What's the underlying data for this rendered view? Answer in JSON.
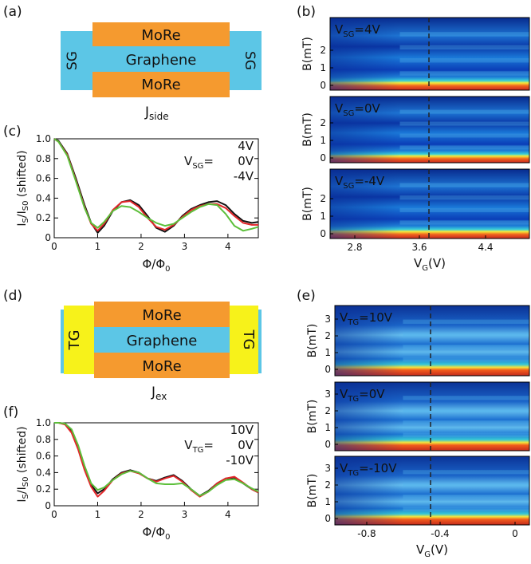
{
  "panels": {
    "a": "(a)",
    "b": "(b)",
    "c": "(c)",
    "d": "(d)",
    "e": "(e)",
    "f": "(f)"
  },
  "colors": {
    "molre": "#f59a2f",
    "graphene": "#5cc6e6",
    "side_gate": "#5cc6e6",
    "top_gate": "#f7f21a",
    "black_series": "#111111",
    "red_series": "#e3262a",
    "green_series": "#5cbf3a"
  },
  "device_a": {
    "top": "MoRe",
    "middle": "Graphene",
    "bottom": "MoRe",
    "left_gate": "SG",
    "right_gate": "SG",
    "label_main": "J",
    "label_sub": "side"
  },
  "device_d": {
    "top": "MoRe",
    "middle": "Graphene",
    "bottom": "MoRe",
    "left_gate": "TG",
    "right_gate": "TG",
    "label_main": "J",
    "label_sub": "ex"
  },
  "maps_b": {
    "ylabel": "B(mT)",
    "xlabel_main": "V",
    "xlabel_sub": "G",
    "xlabel_unit": "(V)",
    "yticks": [
      "0",
      "1",
      "2"
    ],
    "xticks": [
      "2.8",
      "3.6",
      "4.4"
    ],
    "dashed_line_x": "3.7",
    "rows": [
      {
        "prefix": "V",
        "sub": "SG",
        "value": "=4V"
      },
      {
        "prefix": "V",
        "sub": "SG",
        "value": "=0V"
      },
      {
        "prefix": "V",
        "sub": "SG",
        "value": "=-4V"
      }
    ]
  },
  "maps_e": {
    "ylabel": "B(mT)",
    "xlabel_main": "V",
    "xlabel_sub": "G",
    "xlabel_unit": "(V)",
    "yticks": [
      "0",
      "1",
      "2",
      "3"
    ],
    "xticks": [
      "-0.8",
      "-0.4",
      "0"
    ],
    "dashed_line_x": "-0.45",
    "rows": [
      {
        "prefix": "V",
        "sub": "TG",
        "value": "=10V"
      },
      {
        "prefix": "V",
        "sub": "TG",
        "value": "=0V"
      },
      {
        "prefix": "V",
        "sub": "TG",
        "value": "=-10V"
      }
    ]
  },
  "chart_data": [
    {
      "type": "line",
      "panel": "c",
      "ylabel": "I_S/I_S0 (shifted)",
      "xlabel": "Φ/Φ_0",
      "xlim": [
        0,
        4.7
      ],
      "ylim": [
        0,
        1.0
      ],
      "xticks": [
        "0",
        "1",
        "2",
        "3",
        "4"
      ],
      "yticks": [
        "0",
        "0.2",
        "0.4",
        "0.6",
        "0.8",
        "1.0"
      ],
      "legend_prefix": "V",
      "legend_sub": "SG",
      "legend_eq": "=",
      "series": [
        {
          "name": "4V",
          "color": "#111111",
          "x": [
            0,
            0.1,
            0.3,
            0.5,
            0.7,
            0.85,
            1.0,
            1.15,
            1.35,
            1.55,
            1.75,
            1.95,
            2.15,
            2.35,
            2.55,
            2.75,
            2.95,
            3.15,
            3.35,
            3.55,
            3.75,
            3.95,
            4.15,
            4.35,
            4.55,
            4.7
          ],
          "y": [
            1.0,
            0.98,
            0.85,
            0.6,
            0.33,
            0.15,
            0.05,
            0.12,
            0.27,
            0.36,
            0.38,
            0.33,
            0.22,
            0.1,
            0.06,
            0.12,
            0.22,
            0.29,
            0.33,
            0.36,
            0.37,
            0.33,
            0.24,
            0.17,
            0.15,
            0.16
          ]
        },
        {
          "name": "0V",
          "color": "#e3262a",
          "x": [
            0,
            0.1,
            0.3,
            0.5,
            0.7,
            0.85,
            1.0,
            1.15,
            1.35,
            1.55,
            1.75,
            1.95,
            2.15,
            2.35,
            2.55,
            2.75,
            2.95,
            3.15,
            3.35,
            3.55,
            3.75,
            3.95,
            4.15,
            4.35,
            4.55,
            4.7
          ],
          "y": [
            1.0,
            0.97,
            0.84,
            0.58,
            0.31,
            0.14,
            0.07,
            0.14,
            0.28,
            0.36,
            0.37,
            0.31,
            0.2,
            0.11,
            0.08,
            0.13,
            0.21,
            0.28,
            0.32,
            0.34,
            0.34,
            0.3,
            0.22,
            0.15,
            0.13,
            0.13
          ]
        },
        {
          "name": "-4V",
          "color": "#5cbf3a",
          "x": [
            0,
            0.1,
            0.3,
            0.5,
            0.7,
            0.85,
            1.0,
            1.15,
            1.35,
            1.55,
            1.75,
            1.95,
            2.15,
            2.35,
            2.55,
            2.75,
            2.95,
            3.15,
            3.35,
            3.55,
            3.75,
            3.95,
            4.15,
            4.35,
            4.55,
            4.7
          ],
          "y": [
            1.0,
            0.97,
            0.83,
            0.57,
            0.3,
            0.15,
            0.1,
            0.16,
            0.27,
            0.32,
            0.31,
            0.26,
            0.2,
            0.15,
            0.12,
            0.14,
            0.2,
            0.26,
            0.31,
            0.34,
            0.33,
            0.24,
            0.12,
            0.07,
            0.09,
            0.11
          ]
        }
      ]
    },
    {
      "type": "line",
      "panel": "f",
      "ylabel": "I_S/I_S0 (shifted)",
      "xlabel": "Φ/Φ_0",
      "xlim": [
        0,
        4.7
      ],
      "ylim": [
        0,
        1.0
      ],
      "xticks": [
        "0",
        "1",
        "2",
        "3",
        "4"
      ],
      "yticks": [
        "0",
        "0.2",
        "0.4",
        "0.6",
        "0.8",
        "1.0"
      ],
      "legend_prefix": "V",
      "legend_sub": "TG",
      "legend_eq": "=",
      "series": [
        {
          "name": "10V",
          "color": "#111111",
          "x": [
            0,
            0.1,
            0.25,
            0.4,
            0.55,
            0.7,
            0.85,
            1.0,
            1.15,
            1.35,
            1.55,
            1.75,
            1.95,
            2.15,
            2.35,
            2.55,
            2.75,
            2.95,
            3.15,
            3.35,
            3.55,
            3.75,
            3.95,
            4.15,
            4.35,
            4.55,
            4.7
          ],
          "y": [
            1.0,
            1.0,
            0.99,
            0.9,
            0.7,
            0.45,
            0.25,
            0.15,
            0.2,
            0.32,
            0.4,
            0.43,
            0.4,
            0.33,
            0.3,
            0.34,
            0.37,
            0.3,
            0.2,
            0.12,
            0.18,
            0.27,
            0.33,
            0.34,
            0.27,
            0.2,
            0.16
          ]
        },
        {
          "name": "0V",
          "color": "#e3262a",
          "x": [
            0,
            0.1,
            0.25,
            0.4,
            0.55,
            0.7,
            0.85,
            1.0,
            1.15,
            1.35,
            1.55,
            1.75,
            1.95,
            2.15,
            2.35,
            2.55,
            2.75,
            2.95,
            3.15,
            3.35,
            3.55,
            3.75,
            3.95,
            4.15,
            4.35,
            4.55,
            4.7
          ],
          "y": [
            1.0,
            1.0,
            0.98,
            0.88,
            0.68,
            0.43,
            0.23,
            0.11,
            0.18,
            0.31,
            0.39,
            0.42,
            0.39,
            0.33,
            0.29,
            0.33,
            0.36,
            0.29,
            0.19,
            0.11,
            0.17,
            0.27,
            0.33,
            0.35,
            0.28,
            0.2,
            0.16
          ]
        },
        {
          "name": "-10V",
          "color": "#5cbf3a",
          "x": [
            0,
            0.1,
            0.25,
            0.4,
            0.55,
            0.7,
            0.85,
            1.0,
            1.15,
            1.35,
            1.55,
            1.75,
            1.95,
            2.15,
            2.35,
            2.55,
            2.75,
            2.95,
            3.15,
            3.35,
            3.55,
            3.75,
            3.95,
            4.15,
            4.35,
            4.55,
            4.7
          ],
          "y": [
            1.0,
            1.0,
            0.99,
            0.92,
            0.73,
            0.48,
            0.27,
            0.19,
            0.22,
            0.31,
            0.38,
            0.42,
            0.4,
            0.33,
            0.27,
            0.26,
            0.26,
            0.27,
            0.2,
            0.12,
            0.17,
            0.25,
            0.31,
            0.32,
            0.27,
            0.21,
            0.17
          ]
        }
      ]
    }
  ]
}
